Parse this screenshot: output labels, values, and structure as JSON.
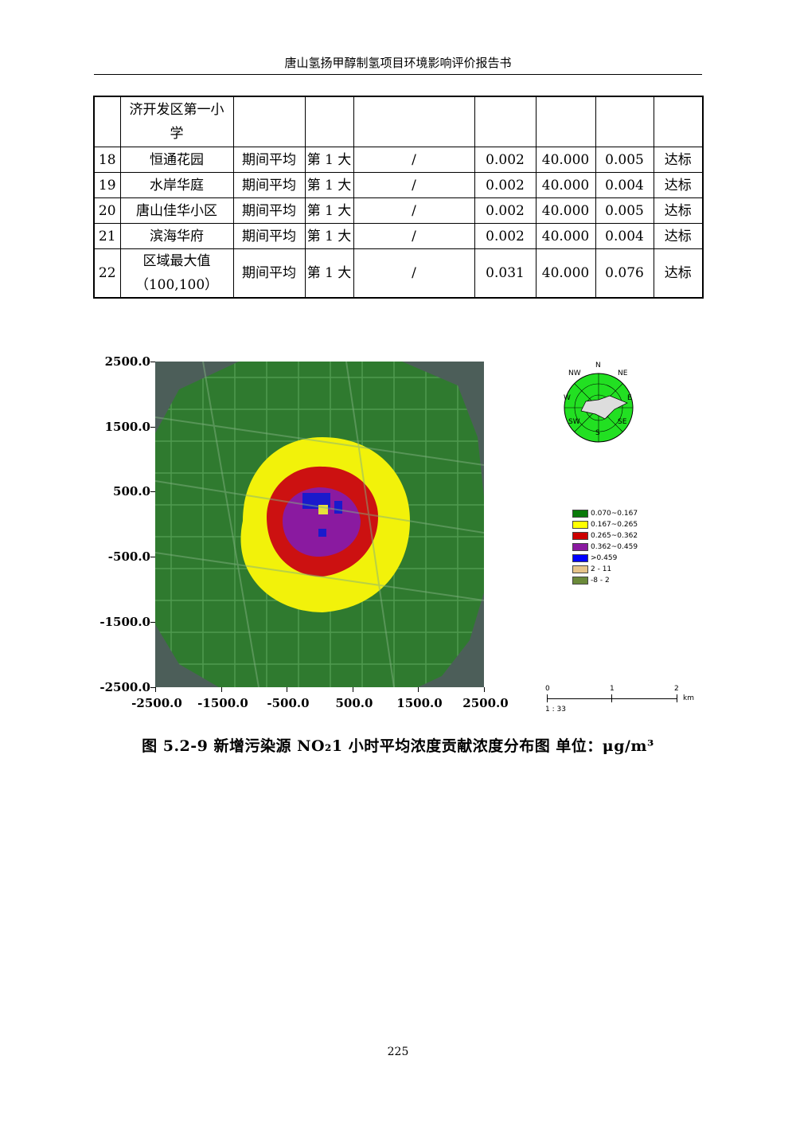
{
  "header": {
    "title": "唐山氢扬甲醇制氢项目环境影响评价报告书"
  },
  "table": {
    "first_row": {
      "name_line1": "济开发区第一小",
      "name_line2": "学"
    },
    "rows": [
      {
        "no": "18",
        "name": "恒通花园",
        "period": "期间平均",
        "rank": "第 1 大",
        "time": "/",
        "value": "0.002",
        "standard": "40.000",
        "percent": "0.005",
        "status": "达标"
      },
      {
        "no": "19",
        "name": "水岸华庭",
        "period": "期间平均",
        "rank": "第 1 大",
        "time": "/",
        "value": "0.002",
        "standard": "40.000",
        "percent": "0.004",
        "status": "达标"
      },
      {
        "no": "20",
        "name": "唐山佳华小区",
        "period": "期间平均",
        "rank": "第 1 大",
        "time": "/",
        "value": "0.002",
        "standard": "40.000",
        "percent": "0.005",
        "status": "达标"
      },
      {
        "no": "21",
        "name": "滨海华府",
        "period": "期间平均",
        "rank": "第 1 大",
        "time": "/",
        "value": "0.002",
        "standard": "40.000",
        "percent": "0.004",
        "status": "达标"
      }
    ],
    "last_row": {
      "no": "22",
      "name_line1": "区域最大值",
      "name_line2": "（100,100）",
      "period": "期间平均",
      "rank": "第 1 大",
      "time": "/",
      "value": "0.031",
      "standard": "40.000",
      "percent": "0.076",
      "status": "达标"
    }
  },
  "figure": {
    "y_ticks": [
      "2500.0",
      "1500.0",
      "500.0",
      "-500.0",
      "-1500.0",
      "-2500.0"
    ],
    "x_ticks": [
      "-2500.0",
      "-1500.0",
      "-500.0",
      "500.0",
      "1500.0",
      "2500.0"
    ],
    "compass": {
      "n": "N",
      "ne": "NE",
      "e": "E",
      "se": "SE",
      "s": "S",
      "sw": "SW",
      "w": "W",
      "nw": "NW"
    },
    "legend": [
      {
        "label": "0.070~0.167",
        "color": "#0a7a0a"
      },
      {
        "label": "0.167~0.265",
        "color": "#ffff00"
      },
      {
        "label": "0.265~0.362",
        "color": "#cc0000"
      },
      {
        "label": "0.362~0.459",
        "color": "#8a1aa0"
      },
      {
        "label": ">0.459",
        "color": "#0000ff"
      },
      {
        "label": "2 - 11",
        "color": "#e6c48a"
      },
      {
        "label": "-8 - 2",
        "color": "#6b8a3a"
      }
    ],
    "scale": {
      "t0": "0",
      "t1": "1",
      "t2": "2",
      "unit": "km",
      "ratio": "1 : 33"
    }
  },
  "caption": {
    "text": "图 5.2-9      新增污染源 NO₂1 小时平均浓度贡献浓度分布图    单位：μg/m³"
  },
  "page_number": "225"
}
